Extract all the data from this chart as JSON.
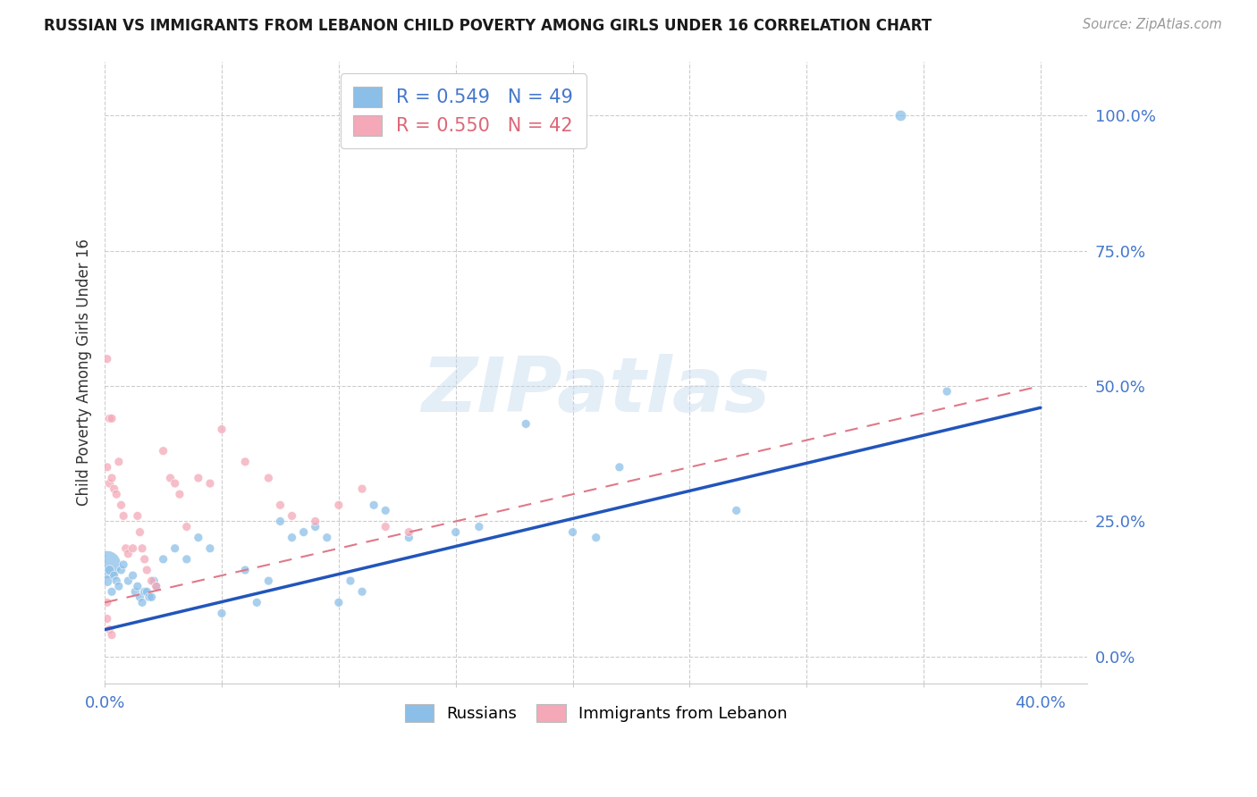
{
  "title": "RUSSIAN VS IMMIGRANTS FROM LEBANON CHILD POVERTY AMONG GIRLS UNDER 16 CORRELATION CHART",
  "source": "Source: ZipAtlas.com",
  "ylabel": "Child Poverty Among Girls Under 16",
  "xlim": [
    0.0,
    0.42
  ],
  "ylim": [
    -0.05,
    1.1
  ],
  "xticks": [
    0.0,
    0.05,
    0.1,
    0.15,
    0.2,
    0.25,
    0.3,
    0.35,
    0.4
  ],
  "yticks": [
    0.0,
    0.25,
    0.5,
    0.75,
    1.0
  ],
  "ytick_labels": [
    "0.0%",
    "25.0%",
    "50.0%",
    "75.0%",
    "100.0%"
  ],
  "grid_color": "#cccccc",
  "background_color": "#ffffff",
  "watermark": "ZIPatlas",
  "legend_R_russian": "0.549",
  "legend_N_russian": "49",
  "legend_R_lebanon": "0.550",
  "legend_N_lebanon": "42",
  "russian_color": "#8bbfe8",
  "lebanon_color": "#f4a8b8",
  "russian_line_color": "#2255bb",
  "lebanon_line_color": "#e07888",
  "russia_scatter_x": [
    0.001,
    0.001,
    0.002,
    0.003,
    0.004,
    0.005,
    0.006,
    0.007,
    0.008,
    0.01,
    0.012,
    0.013,
    0.014,
    0.015,
    0.016,
    0.017,
    0.018,
    0.019,
    0.02,
    0.021,
    0.022,
    0.025,
    0.03,
    0.035,
    0.04,
    0.045,
    0.05,
    0.06,
    0.065,
    0.07,
    0.075,
    0.08,
    0.085,
    0.09,
    0.095,
    0.1,
    0.105,
    0.11,
    0.115,
    0.12,
    0.13,
    0.15,
    0.16,
    0.18,
    0.2,
    0.21,
    0.22,
    0.27,
    0.36
  ],
  "russia_scatter_y": [
    0.17,
    0.14,
    0.16,
    0.12,
    0.15,
    0.14,
    0.13,
    0.16,
    0.17,
    0.14,
    0.15,
    0.12,
    0.13,
    0.11,
    0.1,
    0.12,
    0.12,
    0.11,
    0.11,
    0.14,
    0.13,
    0.18,
    0.2,
    0.18,
    0.22,
    0.2,
    0.08,
    0.16,
    0.1,
    0.14,
    0.25,
    0.22,
    0.23,
    0.24,
    0.22,
    0.1,
    0.14,
    0.12,
    0.28,
    0.27,
    0.22,
    0.23,
    0.24,
    0.43,
    0.23,
    0.22,
    0.35,
    0.27,
    0.49
  ],
  "russia_sizes": [
    500,
    80,
    60,
    50,
    50,
    50,
    50,
    50,
    50,
    50,
    50,
    50,
    50,
    50,
    50,
    50,
    50,
    50,
    50,
    50,
    50,
    50,
    50,
    50,
    50,
    50,
    50,
    50,
    50,
    50,
    50,
    50,
    50,
    50,
    50,
    50,
    50,
    50,
    50,
    50,
    50,
    50,
    50,
    50,
    50,
    50,
    50,
    50,
    50
  ],
  "russia_outlier_x": [
    0.34
  ],
  "russia_outlier_y": [
    1.0
  ],
  "russia_outlier_size": [
    80
  ],
  "lebanon_scatter_x": [
    0.001,
    0.002,
    0.003,
    0.004,
    0.005,
    0.006,
    0.007,
    0.008,
    0.009,
    0.01,
    0.012,
    0.014,
    0.015,
    0.016,
    0.017,
    0.018,
    0.02,
    0.022,
    0.025,
    0.028,
    0.03,
    0.032,
    0.035,
    0.04,
    0.045,
    0.05,
    0.06,
    0.07,
    0.075,
    0.08,
    0.09,
    0.1,
    0.11,
    0.12,
    0.13,
    0.001,
    0.002,
    0.003,
    0.001,
    0.002,
    0.003,
    0.001
  ],
  "lebanon_scatter_y": [
    0.35,
    0.32,
    0.33,
    0.31,
    0.3,
    0.36,
    0.28,
    0.26,
    0.2,
    0.19,
    0.2,
    0.26,
    0.23,
    0.2,
    0.18,
    0.16,
    0.14,
    0.13,
    0.38,
    0.33,
    0.32,
    0.3,
    0.24,
    0.33,
    0.32,
    0.42,
    0.36,
    0.33,
    0.28,
    0.26,
    0.25,
    0.28,
    0.31,
    0.24,
    0.23,
    0.55,
    0.44,
    0.44,
    0.07,
    0.05,
    0.04,
    0.1
  ],
  "lebanon_sizes": [
    50,
    50,
    50,
    50,
    50,
    50,
    50,
    50,
    50,
    50,
    50,
    50,
    50,
    50,
    50,
    50,
    50,
    50,
    50,
    50,
    50,
    50,
    50,
    50,
    50,
    50,
    50,
    50,
    50,
    50,
    50,
    50,
    50,
    50,
    50,
    50,
    50,
    50,
    50,
    50,
    50,
    50
  ],
  "russia_trend_x": [
    0.0,
    0.4
  ],
  "russia_trend_y": [
    0.05,
    0.46
  ],
  "lebanon_trend_x": [
    0.0,
    0.4
  ],
  "lebanon_trend_y": [
    0.1,
    0.5
  ]
}
